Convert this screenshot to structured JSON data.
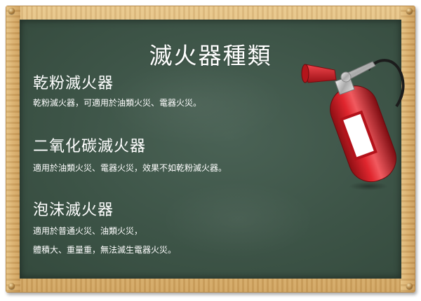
{
  "title": "滅火器種類",
  "sections": [
    {
      "heading": "乾粉滅火器",
      "lines": [
        "乾粉滅火器，可適用於油類火災、電器火災。"
      ]
    },
    {
      "heading": "二氧化碳滅火器",
      "lines": [
        "適用於油類火災、電器火災，效果不如乾粉滅火器。"
      ]
    },
    {
      "heading": "泡沫滅火器",
      "lines": [
        "適用於普通火災、油類火災，",
        "體積大、重量重，無法滅生電器火災。"
      ]
    }
  ],
  "colors": {
    "board": "#3d5447",
    "frame": "#d8ae6a",
    "chalk": "#ffffff",
    "extinguisher": "#d9232b"
  },
  "icons": {
    "extinguisher": "fire-extinguisher-icon",
    "nails": "nail-icon"
  }
}
